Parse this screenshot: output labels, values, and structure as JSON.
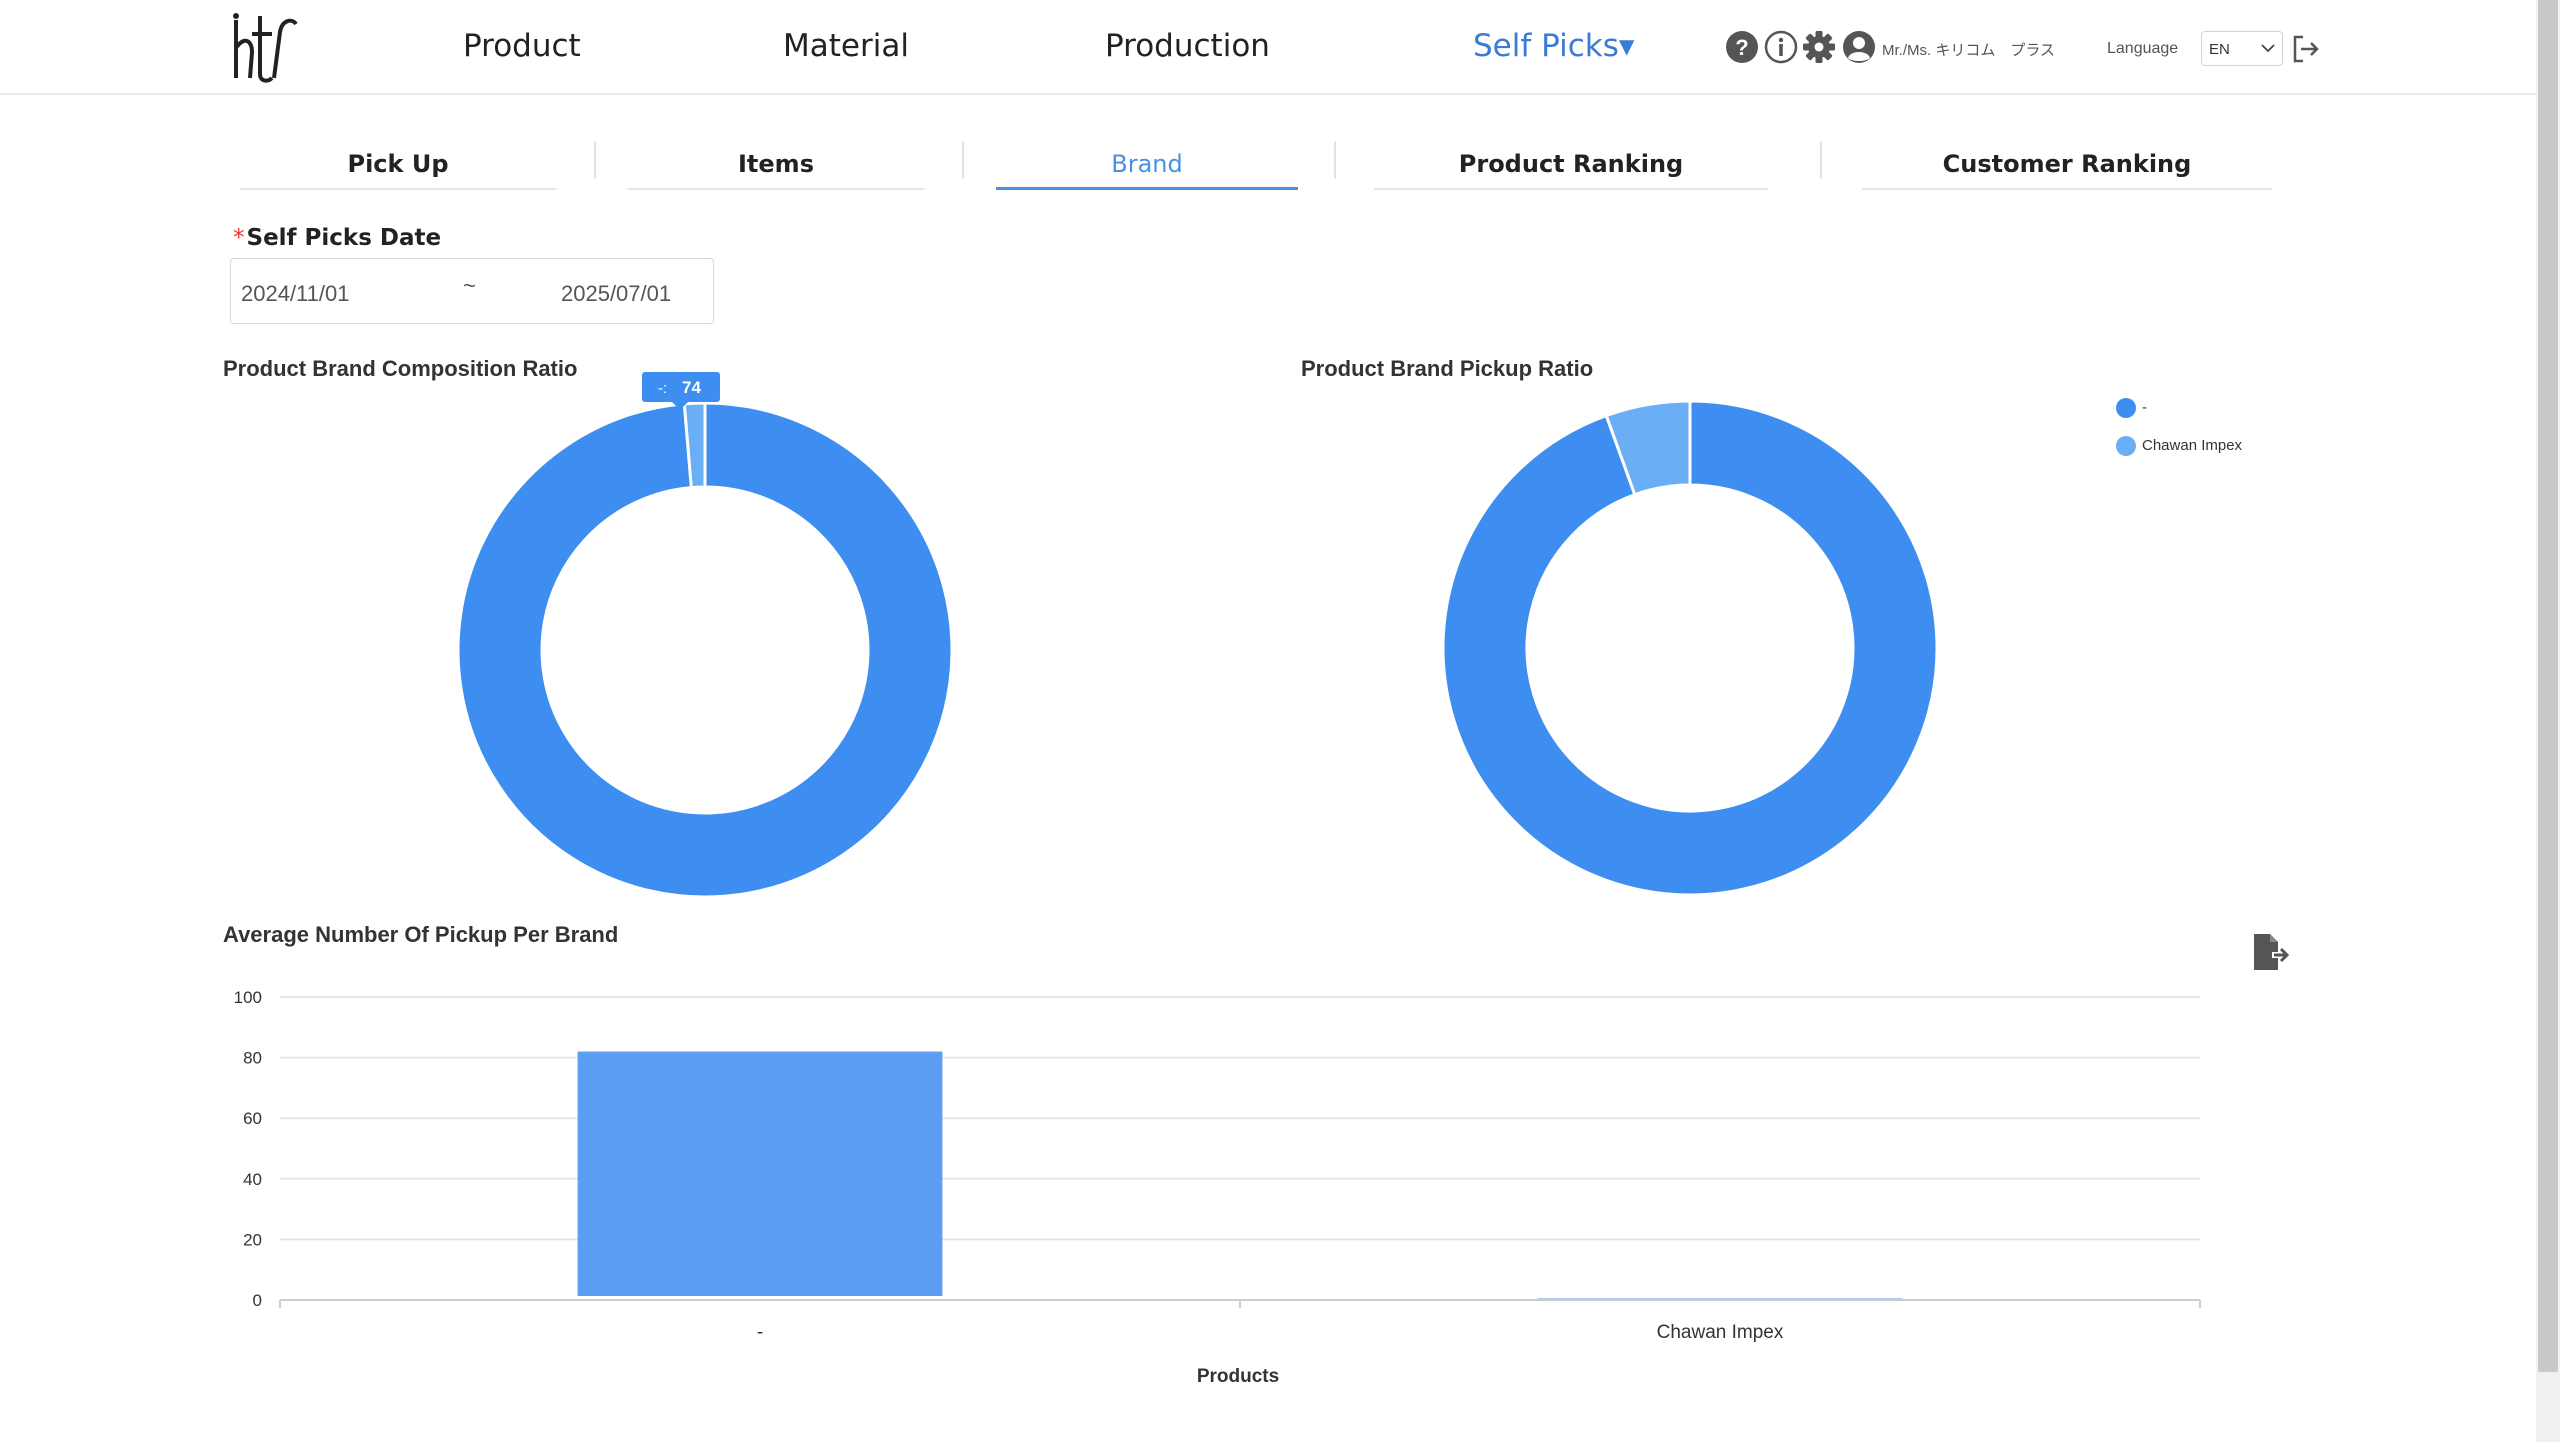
{
  "header": {
    "nav": [
      "Product",
      "Material",
      "Production",
      "Self Picks▾"
    ],
    "user_name": "Mr./Ms. キリコム　プラス",
    "language_label": "Language",
    "language_value": "EN"
  },
  "tabs": [
    "Pick Up",
    "Items",
    "Brand",
    "Product Ranking",
    "Customer Ranking"
  ],
  "filter": {
    "label": "Self Picks Date",
    "required_mark": "*",
    "start": "2024/11/01",
    "separator": "~",
    "end": "2025/07/01"
  },
  "colors": {
    "primary": "#3d8ef0",
    "secondary": "#6aaef5",
    "bar": "#5b9ef2",
    "active_tab": "#4a90e2"
  },
  "charts": {
    "composition_title": "Product Brand Composition Ratio",
    "pickup_title": "Product Brand Pickup Ratio",
    "average_title": "Average Number Of Pickup Per Brand",
    "tooltip": {
      "label": "-:",
      "value": "74"
    }
  },
  "chart_data": [
    {
      "type": "pie",
      "title": "Product Brand Composition Ratio",
      "donut": true,
      "labels": [
        "-",
        "Chawan Impex"
      ],
      "values": [
        74,
        1
      ],
      "tooltip": "-: 74"
    },
    {
      "type": "pie",
      "title": "Product Brand Pickup Ratio",
      "donut": true,
      "labels": [
        "-",
        "Chawan Impex"
      ],
      "values": [
        94.5,
        5.5
      ],
      "legend": "top-right"
    },
    {
      "type": "bar",
      "title": "Average Number Of Pickup Per Brand",
      "categories": [
        "-",
        "Chawan Impex"
      ],
      "values": [
        82,
        0.5
      ],
      "xlabel": "Products",
      "ylabel": "",
      "ylim": [
        0,
        100
      ],
      "yticks": [
        0,
        20,
        40,
        60,
        80,
        100
      ],
      "grid": true
    }
  ]
}
